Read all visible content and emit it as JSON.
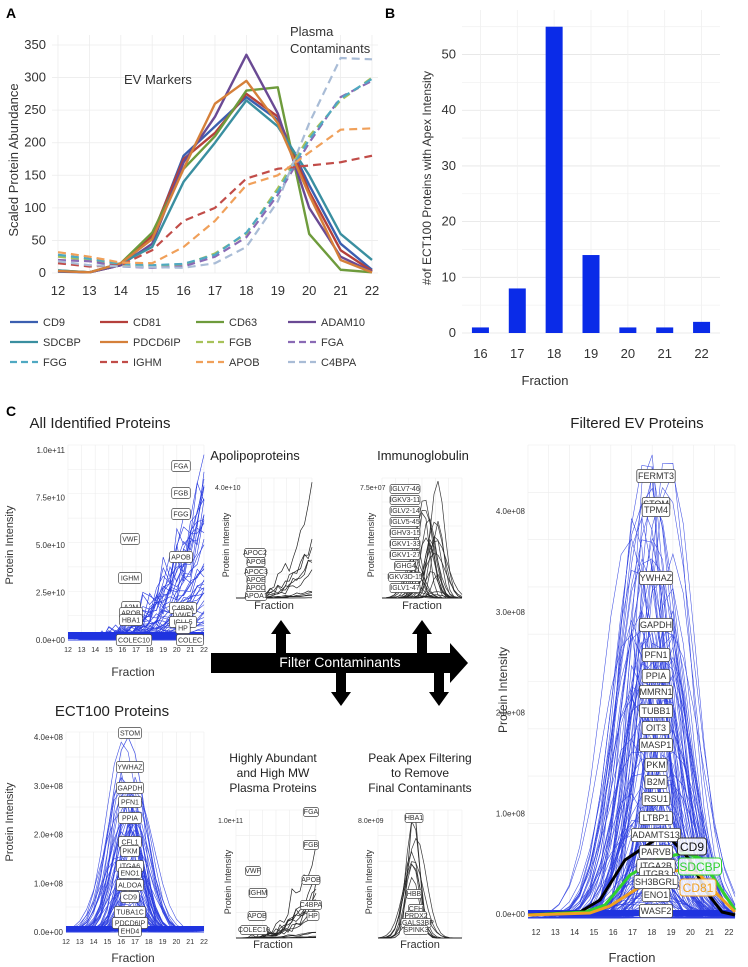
{
  "panel_labels": {
    "a": "A",
    "b": "B",
    "c": "C"
  },
  "chart_data": [
    {
      "type": "line",
      "title": "",
      "annotations": [
        "EV Markers",
        "Plasma",
        "Contaminants"
      ],
      "xlabel": "",
      "ylabel": "Scaled Protein Abundance",
      "x": [
        12,
        13,
        14,
        15,
        16,
        17,
        18,
        19,
        20,
        21,
        22
      ],
      "xticks": [
        "12",
        "13",
        "14",
        "15",
        "16",
        "17",
        "18",
        "19",
        "20",
        "21",
        "22"
      ],
      "yticks": [
        "0",
        "50",
        "100",
        "150",
        "200",
        "250",
        "300",
        "350"
      ],
      "ylim": [
        0,
        350
      ],
      "series": [
        {
          "name": "CD9",
          "color": "#3b5fb0",
          "dash": false,
          "values": [
            2,
            1,
            12,
            55,
            180,
            225,
            270,
            235,
            135,
            45,
            5
          ]
        },
        {
          "name": "CD81",
          "color": "#b5403b",
          "dash": false,
          "values": [
            3,
            1,
            12,
            58,
            175,
            215,
            275,
            240,
            125,
            35,
            3
          ]
        },
        {
          "name": "CD63",
          "color": "#6e9b3c",
          "dash": false,
          "values": [
            4,
            1,
            15,
            62,
            160,
            210,
            280,
            285,
            60,
            5,
            1
          ]
        },
        {
          "name": "ADAM10",
          "color": "#6a4a94",
          "dash": false,
          "values": [
            3,
            1,
            12,
            45,
            170,
            240,
            335,
            245,
            100,
            25,
            2
          ]
        },
        {
          "name": "SDCBP",
          "color": "#3a8fa0",
          "dash": false,
          "values": [
            4,
            1,
            15,
            40,
            140,
            200,
            265,
            225,
            150,
            60,
            20
          ]
        },
        {
          "name": "PDCD6IP",
          "color": "#d5803a",
          "dash": false,
          "values": [
            3,
            1,
            15,
            52,
            160,
            260,
            295,
            230,
            120,
            20,
            1
          ]
        },
        {
          "name": "FGB",
          "color": "#a7c25a",
          "dash": true,
          "values": [
            25,
            20,
            12,
            10,
            12,
            30,
            60,
            130,
            210,
            265,
            300
          ]
        },
        {
          "name": "FGA",
          "color": "#8a6ab5",
          "dash": true,
          "values": [
            20,
            18,
            10,
            8,
            10,
            25,
            55,
            120,
            200,
            270,
            295
          ]
        },
        {
          "name": "FGG",
          "color": "#4fa9c2",
          "dash": true,
          "values": [
            28,
            22,
            14,
            12,
            14,
            28,
            62,
            125,
            205,
            268,
            298
          ]
        },
        {
          "name": "IGHM",
          "color": "#c14c48",
          "dash": true,
          "values": [
            15,
            10,
            12,
            35,
            80,
            100,
            145,
            160,
            165,
            170,
            180
          ]
        },
        {
          "name": "APOB",
          "color": "#f0a05a",
          "dash": true,
          "values": [
            32,
            25,
            16,
            15,
            40,
            80,
            135,
            150,
            185,
            220,
            222
          ]
        },
        {
          "name": "C4BPA",
          "color": "#a9bcd6",
          "dash": true,
          "values": [
            18,
            12,
            10,
            9,
            8,
            15,
            40,
            110,
            230,
            330,
            328
          ]
        }
      ]
    },
    {
      "type": "bar",
      "title": "",
      "xlabel": "Fraction",
      "ylabel": "#of ECT100 Proteins with Apex Intensity",
      "categories": [
        "16",
        "17",
        "18",
        "19",
        "20",
        "21",
        "22"
      ],
      "values": [
        1,
        8,
        55,
        14,
        1,
        1,
        2
      ],
      "yticks": [
        "0",
        "10",
        "20",
        "30",
        "40",
        "50"
      ],
      "ylim": [
        0,
        58
      ],
      "color": "#0a2be8"
    }
  ],
  "panel_c": {
    "all_identified": {
      "title": "All Identified Proteins",
      "ylabel": "Protein Intensity",
      "xlabel": "Fraction",
      "yticks": [
        "0.0e+00",
        "2.5e+10",
        "5.0e+10",
        "7.5e+10",
        "1.0e+11"
      ],
      "xticks": [
        "12",
        "13",
        "14",
        "15",
        "16",
        "17",
        "18",
        "19",
        "20",
        "21",
        "22"
      ],
      "tags": [
        "FGA",
        "FGB",
        "FGG",
        "VWF",
        "APOB",
        "IGHM",
        "A2M",
        "APOB",
        "HBA1",
        "C4BPA",
        "VWF",
        "IGLL5",
        "HP",
        "COLEC10",
        "COLEC"
      ]
    },
    "apolipoproteins": {
      "title": "Apolipoproteins",
      "ytick": "4.0e+10",
      "ylabel": "Protein Intensity",
      "xlabel": "Fraction",
      "tags": [
        "APOC2",
        "APOB",
        "APOC3",
        "APOE",
        "APOD",
        "APOA1"
      ]
    },
    "immunoglobulin": {
      "title": "Immunoglobulin",
      "ytick": "7.5e+07",
      "ylabel": "Protein Intensity",
      "xlabel": "Fraction",
      "tags": [
        "IGLV7-46",
        "IGKV3-11",
        "IGLV2-14",
        "IGLV5-45",
        "IGHV3-15",
        "IGKV1-33",
        "IGKV1-27",
        "IGHG4",
        "IGKV3D-15",
        "IGLV1-47"
      ]
    },
    "arrow_label": "Filter Contaminants",
    "abundant": {
      "title_line1": "Highly Abundant",
      "title_line2": "and High MW",
      "title_line3": "Plasma Proteins",
      "ytick": "1.0e+11",
      "ylabel": "Protein Intensity",
      "xlabel": "Fraction",
      "tags": [
        "FGA",
        "FGB",
        "VWF",
        "APOB",
        "IGHM",
        "C4BPA",
        "APOB",
        "HP",
        "COLEC10"
      ]
    },
    "peak_apex": {
      "title_line1": "Peak Apex Filtering",
      "title_line2": "to Remove",
      "title_line3": "Final Contaminants",
      "ytick": "8.0e+09",
      "ylabel": "Protein Intensity",
      "xlabel": "Fraction",
      "tags": [
        "HBA1",
        "HBB",
        "CFH",
        "PRDX2",
        "LGALS3BP",
        "SPINK3"
      ]
    },
    "ect100": {
      "title": "ECT100 Proteins",
      "ylabel": "Protein Intensity",
      "xlabel": "Fraction",
      "yticks": [
        "0.0e+00",
        "1.0e+08",
        "2.0e+08",
        "3.0e+08",
        "4.0e+08"
      ],
      "xticks": [
        "12",
        "13",
        "14",
        "15",
        "16",
        "17",
        "18",
        "19",
        "20",
        "21",
        "22"
      ],
      "tags": [
        "STOM",
        "YWHAZ",
        "GAPDH",
        "PFN1",
        "PPIA",
        "CFL1",
        "PKM",
        "ITGA6",
        "ENO1",
        "ALDOA",
        "CD9",
        "TUBA1C",
        "PDCD6IP",
        "EHD4"
      ]
    },
    "filtered": {
      "title": "Filtered EV Proteins",
      "ylabel": "Protein Intensity",
      "xlabel": "Fraction",
      "yticks": [
        "0.0e+00",
        "1.0e+08",
        "2.0e+08",
        "3.0e+08",
        "4.0e+08"
      ],
      "xticks": [
        "12",
        "13",
        "14",
        "15",
        "16",
        "17",
        "18",
        "19",
        "20",
        "21",
        "22"
      ],
      "tags": [
        "FERMT3",
        "STOM",
        "TPM4",
        "YWHAZ",
        "GAPDH",
        "PFN1",
        "PPIA",
        "MMRN1",
        "TUBB1",
        "OIT3",
        "MASP1",
        "PKM",
        "B2M",
        "RSU1",
        "LTBP1",
        "ADAMTS13",
        "PARVB",
        "ITGA2B",
        "ITGB3",
        "SH3BGRL",
        "ENO1",
        "WASF2"
      ],
      "highlights": [
        {
          "name": "CD9",
          "color": "#000000"
        },
        {
          "name": "SDCBP",
          "color": "#2fd12f"
        },
        {
          "name": "CD81",
          "color": "#f0a020"
        }
      ]
    }
  }
}
